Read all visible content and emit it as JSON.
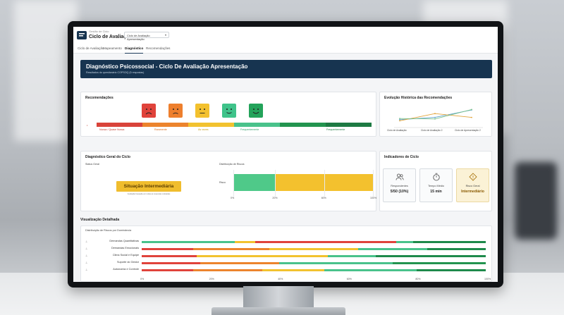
{
  "header": {
    "crumb": "Gestão de Ciclo",
    "title": "Ciclo de Avaliação",
    "cycle_selected": "Ciclo de Avaliação Apresentação"
  },
  "tabs": [
    {
      "label": "Ciclo de Avaliação",
      "active": false
    },
    {
      "label": "Mapeamento",
      "active": false
    },
    {
      "label": "Diagnóstico",
      "active": true
    },
    {
      "label": "Recomendações",
      "active": false
    }
  ],
  "banner": {
    "title": "Diagnóstico Psicossocial - Ciclo De Avaliação Apresentação",
    "subtitle": "Resultados do questionário COPSOQ (5 respostas)"
  },
  "recomendacoes": {
    "title": "Recomendações",
    "faces": [
      {
        "mood": "very-sad",
        "color": "#e0433b"
      },
      {
        "mood": "sad",
        "color": "#ee7f2d"
      },
      {
        "mood": "neutral",
        "color": "#f3c12e"
      },
      {
        "mood": "happy",
        "color": "#3fc38a"
      },
      {
        "mood": "very-happy",
        "color": "#23a35a"
      }
    ],
    "scale_colors": [
      "#d9433a",
      "#ec842d",
      "#f2c22f",
      "#49c28b",
      "#23944f",
      "#1d7a43"
    ],
    "labels": [
      {
        "text": "Nunca / Quase Nunca",
        "color": "#c0392b"
      },
      {
        "text": "Raramente",
        "color": "#d96b1c"
      },
      {
        "text": "Às vezes",
        "color": "#c49a10"
      },
      {
        "text": "Frequentemente",
        "color": "#2e9d6a"
      },
      {
        "text": "Frequentemente",
        "color": "#1d7a43"
      }
    ]
  },
  "evolucao": {
    "title": "Evolução Histórica das Recomendações",
    "x_labels": [
      "Ciclo de Avaliação",
      "Ciclo de Avaliação 2",
      "Ciclo de Apresentação 2"
    ],
    "series": [
      {
        "color": "#5aa0c8",
        "values": [
          0.35,
          0.45,
          0.78
        ]
      },
      {
        "color": "#e2a43a",
        "values": [
          0.3,
          0.62,
          0.45
        ]
      },
      {
        "color": "#7cc28c",
        "values": [
          0.4,
          0.38,
          0.8
        ]
      }
    ]
  },
  "diagnostico": {
    "title": "Diagnóstico Geral do Ciclo",
    "status_label": "Status Geral",
    "status_value": "Situação Intermediária",
    "status_note": "Avaliação baseada em todas as respostas coletadas",
    "dist_label": "Distribuição de Riscos",
    "dist_row": "Risco",
    "dist_segments": [
      {
        "color": "#4fc989",
        "value": 0.3
      },
      {
        "color": "#f3c12e",
        "value": 0.7
      }
    ],
    "ticks": [
      "0%",
      "20%",
      "60%",
      "100%"
    ]
  },
  "indicadores": {
    "title": "Indicadores de Ciclo",
    "items": [
      {
        "icon": "users-icon",
        "label": "Respondentes",
        "value": "5/50 (10%)"
      },
      {
        "icon": "timer-icon",
        "label": "Tempo Médio",
        "value": "15 min"
      },
      {
        "icon": "warning-icon",
        "label": "Risco Geral",
        "value": "Intermediário"
      }
    ]
  },
  "visualizacao": {
    "title": "Visualização Detalhada",
    "subtitle": "Distribuição de Riscos por Dominância",
    "rows": [
      {
        "label": "Demandas Quantitativas",
        "segments": [
          [
            "#49c28b",
            0.27
          ],
          [
            "#f2c22f",
            0.06
          ],
          [
            "#e0433b",
            0.41
          ],
          [
            "#49c28b",
            0.05
          ],
          [
            "#1e8a4b",
            0.21
          ]
        ]
      },
      {
        "label": "Demandas Emocionais",
        "segments": [
          [
            "#e0433b",
            0.15
          ],
          [
            "#ec842d",
            0.22
          ],
          [
            "#f2c22f",
            0.26
          ],
          [
            "#49c28b",
            0.2
          ],
          [
            "#1e8a4b",
            0.17
          ]
        ]
      },
      {
        "label": "Clima Social e Equipe",
        "segments": [
          [
            "#e0433b",
            0.16
          ],
          [
            "#f2c22f",
            0.38
          ],
          [
            "#49c28b",
            0.14
          ],
          [
            "#1e8a4b",
            0.32
          ]
        ]
      },
      {
        "label": "Suporte do Gestor",
        "segments": [
          [
            "#e0433b",
            0.17
          ],
          [
            "#ec842d",
            0.23
          ],
          [
            "#49c28b",
            0.33
          ],
          [
            "#23944f",
            0.27
          ]
        ]
      },
      {
        "label": "Autonomia e Controle",
        "segments": [
          [
            "#e0433b",
            0.15
          ],
          [
            "#ec842d",
            0.2
          ],
          [
            "#f2c22f",
            0.18
          ],
          [
            "#49c28b",
            0.27
          ],
          [
            "#1e8a4b",
            0.2
          ]
        ]
      }
    ],
    "ticks": [
      "0%",
      "20%",
      "40%",
      "60%",
      "80%",
      "100%"
    ]
  }
}
